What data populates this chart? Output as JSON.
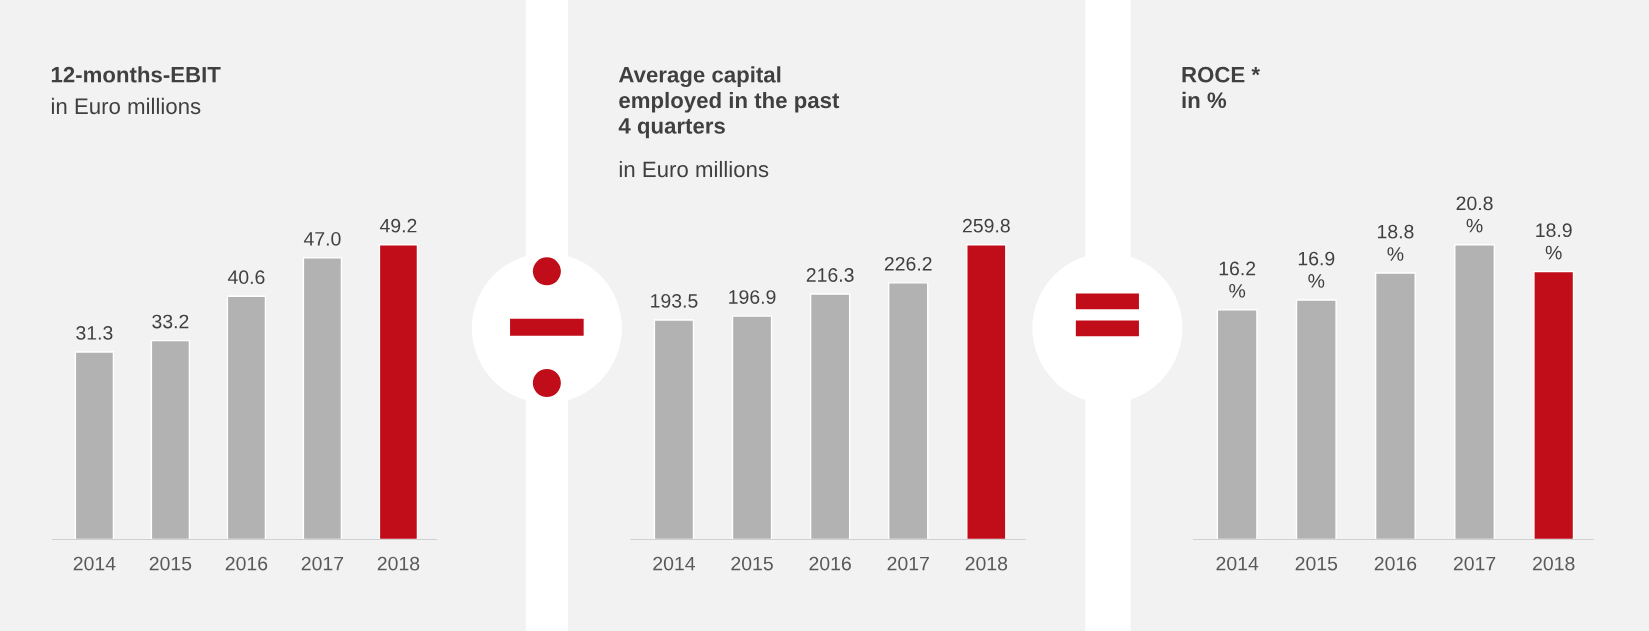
{
  "chart_data": [
    {
      "type": "bar",
      "title": "12-months-EBIT",
      "subtitle": "in Euro millions",
      "categories": [
        "2014",
        "2015",
        "2016",
        "2017",
        "2018"
      ],
      "values": [
        31.3,
        33.2,
        40.6,
        47.0,
        49.2
      ],
      "colors": [
        "#b2b2b2",
        "#b2b2b2",
        "#b2b2b2",
        "#b2b2b2",
        "#c00d19"
      ],
      "value_labels": [
        "31.3",
        "33.2",
        "40.6",
        "47.0",
        "49.2"
      ],
      "tick_labels": "x",
      "grid": false,
      "legend": false
    },
    {
      "type": "bar",
      "title": "Average capital\nemployed in the past\n4 quarters",
      "subtitle": "in Euro millions",
      "categories": [
        "2014",
        "2015",
        "2016",
        "2017",
        "2018"
      ],
      "values": [
        193.5,
        196.9,
        216.3,
        226.2,
        259.8
      ],
      "colors": [
        "#b2b2b2",
        "#b2b2b2",
        "#b2b2b2",
        "#b2b2b2",
        "#c00d19"
      ],
      "value_labels": [
        "193.5",
        "196.9",
        "216.3",
        "226.2",
        "259.8"
      ],
      "tick_labels": "x",
      "grid": false,
      "legend": false
    },
    {
      "type": "bar",
      "title": "ROCE *\nin %",
      "categories": [
        "2014",
        "2015",
        "2016",
        "2017",
        "2018"
      ],
      "values": [
        16.2,
        16.9,
        18.8,
        20.8,
        18.9
      ],
      "colors": [
        "#b2b2b2",
        "#b2b2b2",
        "#b2b2b2",
        "#b2b2b2",
        "#c00d19"
      ],
      "value_labels": [
        "16.2\n%",
        "16.9\n%",
        "18.8\n%",
        "20.8\n%",
        "18.9\n%"
      ],
      "tick_labels": "x",
      "grid": false,
      "legend": false
    }
  ]
}
